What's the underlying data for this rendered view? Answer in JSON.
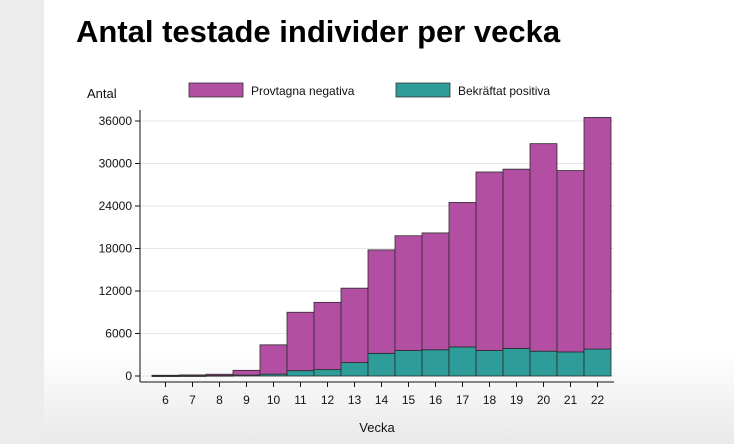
{
  "slide": {
    "title": "Antal testade individer per vecka"
  },
  "chart_data": {
    "type": "bar",
    "stacked": true,
    "ylabel": "Antal",
    "xlabel": "Vecka",
    "ylim": [
      0,
      36000
    ],
    "yticks": [
      0,
      6000,
      12000,
      18000,
      24000,
      30000,
      36000
    ],
    "grid": true,
    "legend_position": "top",
    "categories": [
      "6",
      "7",
      "8",
      "9",
      "10",
      "11",
      "12",
      "13",
      "14",
      "15",
      "16",
      "17",
      "18",
      "19",
      "20",
      "21",
      "22"
    ],
    "series": [
      {
        "name": "Bekräftat positiva",
        "color": "#2e9d9a",
        "values": [
          10,
          20,
          60,
          130,
          260,
          750,
          900,
          1900,
          3200,
          3600,
          3700,
          4100,
          3600,
          3900,
          3500,
          3400,
          3800
        ]
      },
      {
        "name": "Provtagna negativa",
        "color": "#b24fa3",
        "values": [
          90,
          130,
          190,
          670,
          4140,
          8250,
          9500,
          10500,
          14600,
          16200,
          16500,
          20400,
          25200,
          25300,
          29300,
          25600,
          32700
        ]
      }
    ]
  }
}
